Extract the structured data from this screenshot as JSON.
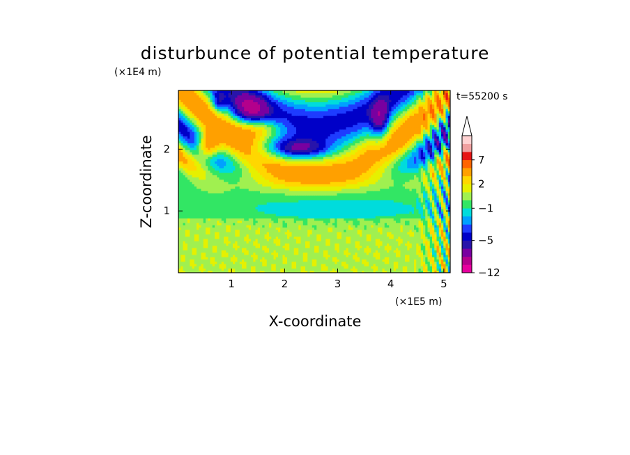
{
  "chart_data": {
    "type": "heatmap",
    "title": "disturbunce of potential temperature",
    "time_label": "t=55200 s",
    "xlabel": "X-coordinate",
    "ylabel": "Z-coordinate",
    "x_scale_label": "(×1E5 m)",
    "y_scale_label": "(×1E4 m)",
    "xlim": [
      0,
      5.12
    ],
    "ylim": [
      0,
      2.95
    ],
    "x_ticks": [
      1,
      2,
      3,
      4,
      5
    ],
    "y_ticks": [
      1,
      2
    ],
    "colorbar": {
      "levels": [
        -12,
        -10,
        -8,
        -6,
        -5,
        -4,
        -3,
        -2,
        -1,
        0,
        1,
        2,
        3,
        5,
        7,
        9,
        11
      ],
      "tick_labels": [
        "7",
        "2",
        "−1",
        "−5",
        "−12"
      ],
      "tick_values": [
        7,
        2,
        -1,
        -5,
        -12
      ],
      "extend": "max",
      "colors": [
        "#e6009e",
        "#b4008c",
        "#7800a0",
        "#2814aa",
        "#0000c8",
        "#1e3cff",
        "#00a0ff",
        "#00dcdc",
        "#32e664",
        "#a0f050",
        "#e6f000",
        "#ffd700",
        "#ffa000",
        "#ff6400",
        "#e61414",
        "#f0a0a0",
        "#ffd2d2"
      ]
    }
  }
}
